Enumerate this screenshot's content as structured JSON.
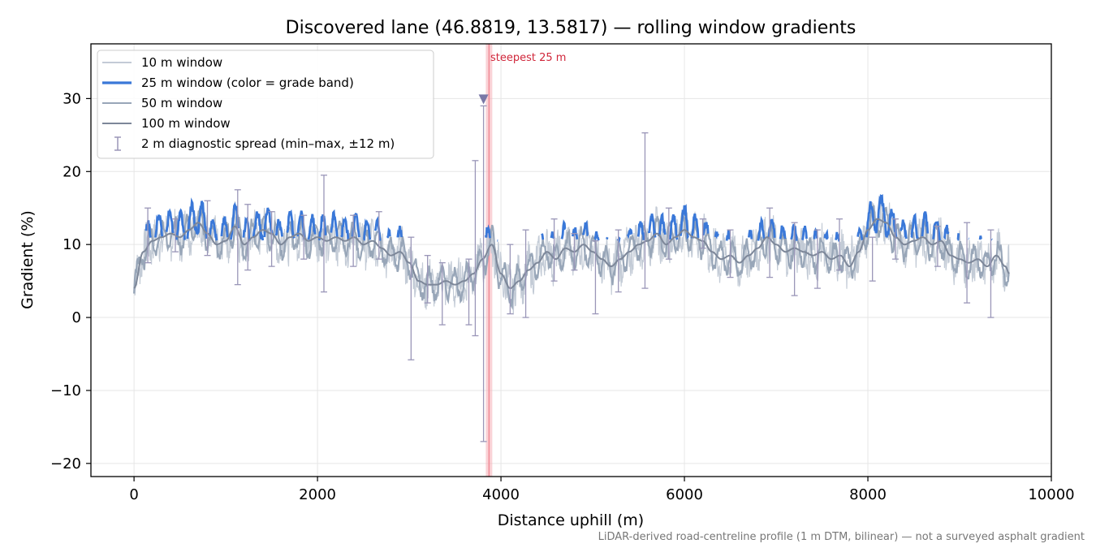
{
  "chart_data": {
    "type": "line",
    "title": "Discovered lane (46.8819, 13.5817) — rolling window gradients",
    "xlabel": "Distance uphill (m)",
    "ylabel": "Gradient (%)",
    "xlim": [
      -470,
      10000
    ],
    "ylim": [
      -21.8,
      37.5
    ],
    "xticks": [
      0,
      2000,
      4000,
      6000,
      8000,
      10000
    ],
    "xtick_labels": [
      "0",
      "2000",
      "4000",
      "6000",
      "8000",
      "10000"
    ],
    "yticks": [
      -20,
      -10,
      0,
      10,
      20,
      30
    ],
    "ytick_labels": [
      "−20",
      "−10",
      "0",
      "10",
      "20",
      "30"
    ],
    "grid": true,
    "legend_position": "upper-left",
    "legend": [
      {
        "label": "10 m window",
        "kind": "line",
        "color": "#c3cbd6"
      },
      {
        "label": "25 m window (color = grade band)",
        "kind": "thickline",
        "color": "#3a78d8"
      },
      {
        "label": "50 m window",
        "kind": "line",
        "color": "#98a6b8"
      },
      {
        "label": "100 m window",
        "kind": "line",
        "color": "#7d8799"
      },
      {
        "label": "2 m diagnostic spread (min–max, ±12 m)",
        "kind": "errorbar",
        "color": "#9a96b8"
      }
    ],
    "annotation": {
      "text": "steepest 25 m",
      "x": 3870,
      "color": "#d0263a"
    },
    "marker": {
      "x": 3810,
      "y": 30
    },
    "series": [
      {
        "name": "100 m window",
        "color": "#7d8799",
        "x": [
          0,
          100,
          200,
          300,
          400,
          500,
          600,
          700,
          800,
          900,
          1000,
          1100,
          1200,
          1300,
          1400,
          1500,
          1600,
          1700,
          1800,
          1900,
          2000,
          2100,
          2200,
          2300,
          2400,
          2500,
          2600,
          2700,
          2800,
          2900,
          3000,
          3100,
          3200,
          3300,
          3400,
          3500,
          3600,
          3700,
          3800,
          3900,
          4000,
          4100,
          4200,
          4300,
          4400,
          4500,
          4600,
          4700,
          4800,
          4900,
          5000,
          5100,
          5200,
          5300,
          5400,
          5500,
          5600,
          5700,
          5800,
          5900,
          6000,
          6100,
          6200,
          6300,
          6400,
          6500,
          6600,
          6700,
          6800,
          6900,
          7000,
          7100,
          7200,
          7300,
          7400,
          7500,
          7600,
          7700,
          7800,
          7900,
          8000,
          8100,
          8200,
          8300,
          8400,
          8500,
          8600,
          8700,
          8800,
          8900,
          9000,
          9100,
          9200,
          9300,
          9400,
          9500,
          9540
        ],
        "values": [
          4,
          9,
          10.5,
          11,
          11.5,
          11,
          12,
          13,
          11.5,
          10,
          10.5,
          12.5,
          10,
          11,
          12,
          11.5,
          10,
          11,
          11.5,
          10.5,
          11,
          10.5,
          11,
          10.5,
          11,
          10,
          10.5,
          9.5,
          8.5,
          9,
          7.5,
          5,
          4.5,
          4.5,
          5,
          4.5,
          5,
          6,
          8,
          10,
          6,
          4,
          5,
          6.5,
          7.5,
          9,
          8,
          9.5,
          9,
          10,
          9,
          8,
          7,
          8,
          9,
          10,
          10.5,
          11.5,
          10,
          11,
          12,
          11,
          10.5,
          9,
          8,
          8.5,
          7.5,
          8.5,
          9.5,
          11,
          10,
          9,
          9.5,
          9,
          8.5,
          9,
          8,
          8.5,
          7,
          9,
          12,
          13.5,
          13,
          11,
          10,
          10.5,
          11,
          10,
          10.5,
          8.5,
          8,
          7.5,
          8,
          7,
          8.5,
          7,
          6
        ]
      }
    ],
    "errorbars": [
      {
        "x": 150,
        "lo": 7.5,
        "hi": 15
      },
      {
        "x": 450,
        "lo": 9,
        "hi": 13.5
      },
      {
        "x": 800,
        "lo": 8.5,
        "hi": 16
      },
      {
        "x": 1130,
        "lo": 4.5,
        "hi": 17.5
      },
      {
        "x": 1240,
        "lo": 6.5,
        "hi": 15.5
      },
      {
        "x": 1500,
        "lo": 7,
        "hi": 14.5
      },
      {
        "x": 1850,
        "lo": 8,
        "hi": 14
      },
      {
        "x": 2070,
        "lo": 3.5,
        "hi": 19.5
      },
      {
        "x": 2390,
        "lo": 7,
        "hi": 14
      },
      {
        "x": 2670,
        "lo": 8,
        "hi": 14.5
      },
      {
        "x": 3020,
        "lo": -5.8,
        "hi": 11
      },
      {
        "x": 3200,
        "lo": 2,
        "hi": 8.5
      },
      {
        "x": 3360,
        "lo": -1,
        "hi": 7.5
      },
      {
        "x": 3650,
        "lo": -1,
        "hi": 8
      },
      {
        "x": 3720,
        "lo": -2.5,
        "hi": 21.5
      },
      {
        "x": 3810,
        "lo": -17,
        "hi": 29
      },
      {
        "x": 4100,
        "lo": 0.5,
        "hi": 10
      },
      {
        "x": 4270,
        "lo": 0,
        "hi": 12
      },
      {
        "x": 4580,
        "lo": 5,
        "hi": 13.5
      },
      {
        "x": 4800,
        "lo": 6.5,
        "hi": 11.5
      },
      {
        "x": 5030,
        "lo": 0.5,
        "hi": 10.5
      },
      {
        "x": 5280,
        "lo": 3.5,
        "hi": 12
      },
      {
        "x": 5570,
        "lo": 4,
        "hi": 25.3
      },
      {
        "x": 5830,
        "lo": 8,
        "hi": 15
      },
      {
        "x": 6200,
        "lo": 9.5,
        "hi": 13.5
      },
      {
        "x": 6500,
        "lo": 5.5,
        "hi": 12
      },
      {
        "x": 6930,
        "lo": 5.5,
        "hi": 15
      },
      {
        "x": 7200,
        "lo": 3,
        "hi": 13
      },
      {
        "x": 7450,
        "lo": 4,
        "hi": 12
      },
      {
        "x": 7690,
        "lo": 6.5,
        "hi": 13.5
      },
      {
        "x": 8050,
        "lo": 5,
        "hi": 11
      },
      {
        "x": 8300,
        "lo": 8,
        "hi": 13.5
      },
      {
        "x": 8760,
        "lo": 7,
        "hi": 12.5
      },
      {
        "x": 9080,
        "lo": 2,
        "hi": 13
      },
      {
        "x": 9340,
        "lo": 0,
        "hi": 12
      }
    ],
    "footer": "LiDAR-derived road-centreline profile (1 m DTM, bilinear) — not a surveyed asphalt gradient"
  }
}
